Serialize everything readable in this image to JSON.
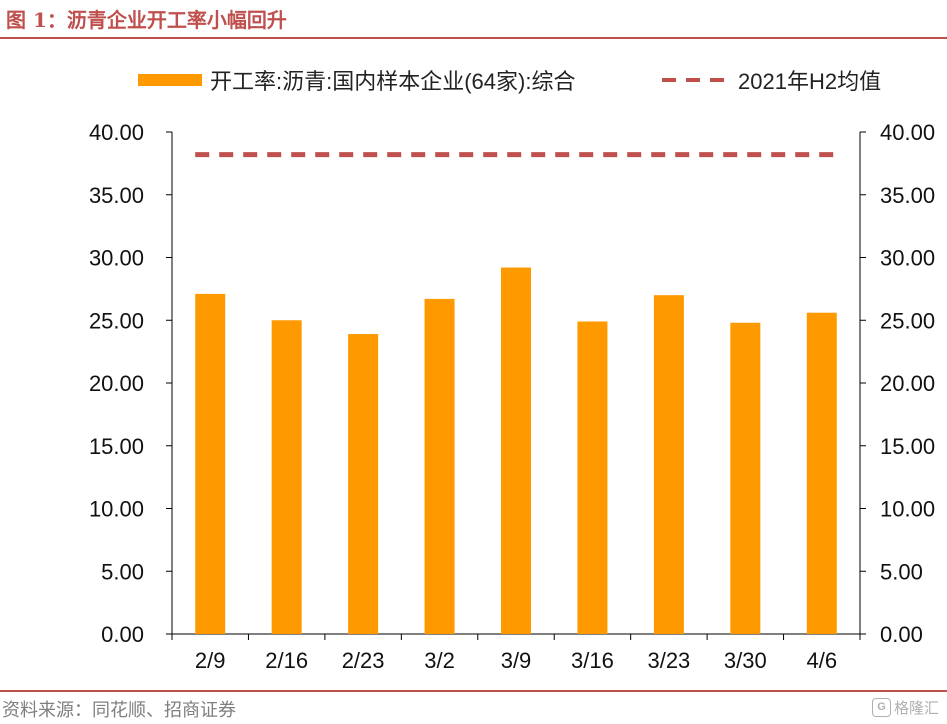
{
  "header": {
    "title": "图 1：沥青企业开工率小幅回升"
  },
  "footer": {
    "source": "资料来源：同花顺、招商证券",
    "watermark_text": "格隆汇",
    "watermark_icon": "G"
  },
  "colors": {
    "bar": "#ff9900",
    "avg_line": "#c0504d",
    "accent": "#c0504d"
  },
  "chart_data": {
    "type": "bar",
    "categories": [
      "2/9",
      "2/16",
      "2/23",
      "3/2",
      "3/9",
      "3/16",
      "3/23",
      "3/30",
      "4/6"
    ],
    "series": [
      {
        "name": "开工率:沥青:国内样本企业(64家):综合",
        "type": "bar",
        "values": [
          27.1,
          25.0,
          23.9,
          26.7,
          29.2,
          24.9,
          27.0,
          24.8,
          25.6
        ]
      },
      {
        "name": "2021年H2均值",
        "type": "line",
        "style": "dashed",
        "values": [
          38.2,
          38.2,
          38.2,
          38.2,
          38.2,
          38.2,
          38.2,
          38.2,
          38.2
        ]
      }
    ],
    "ylim": [
      0,
      40
    ],
    "yticks": [
      "0.00",
      "5.00",
      "10.00",
      "15.00",
      "20.00",
      "25.00",
      "30.00",
      "35.00",
      "40.00"
    ],
    "y2lim": [
      0,
      40
    ],
    "legend_position": "top",
    "grid": false
  }
}
